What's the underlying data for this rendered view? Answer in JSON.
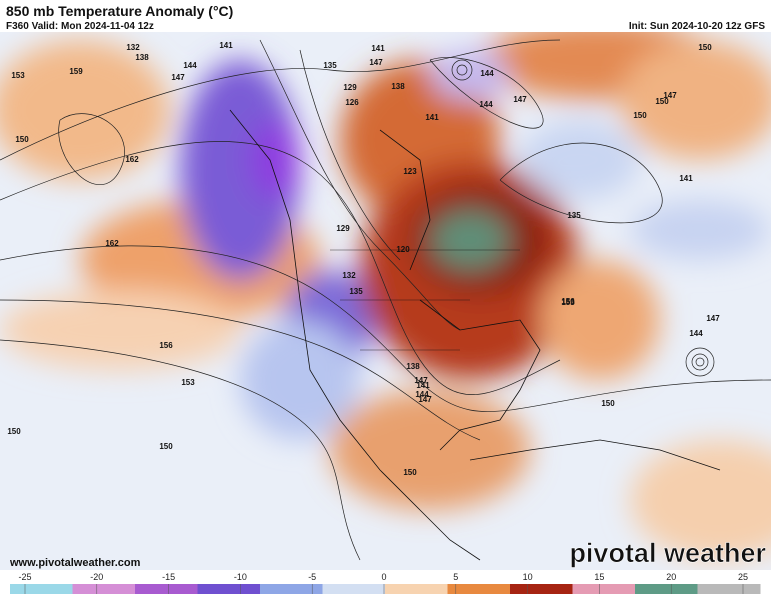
{
  "header": {
    "title": "850 mb Temperature Anomaly (°C)",
    "valid": "F360 Valid: Mon 2024-11-04 12z",
    "init": "Init: Sun 2024-10-20 12z GFS"
  },
  "footer": {
    "url": "www.pivotalweather.com",
    "brand": "pivotal weather"
  },
  "colorbar": {
    "ticks": [
      -25,
      -20,
      -15,
      -10,
      -5,
      0,
      5,
      10,
      15,
      20,
      25
    ],
    "colors": [
      "#9ad8e8",
      "#d58fd6",
      "#a85bd0",
      "#6f50d0",
      "#8ea6e6",
      "#d3dff2",
      "#f7d3b0",
      "#e8893f",
      "#a62412",
      "#e59bb3",
      "#5e9b86",
      "#b9b9b9"
    ]
  },
  "contour_labels": [
    "132",
    "138",
    "141",
    "144",
    "147",
    "153",
    "159",
    "150",
    "162",
    "162",
    "156",
    "153",
    "150",
    "150",
    "135",
    "129",
    "126",
    "123",
    "120",
    "129",
    "132",
    "135",
    "141",
    "147",
    "144",
    "147",
    "150",
    "150",
    "144",
    "147",
    "156",
    "141",
    "135",
    "138",
    "141",
    "147",
    "153",
    "150",
    "144",
    "147",
    "150",
    "138",
    "141",
    "144",
    "147",
    "150"
  ]
}
